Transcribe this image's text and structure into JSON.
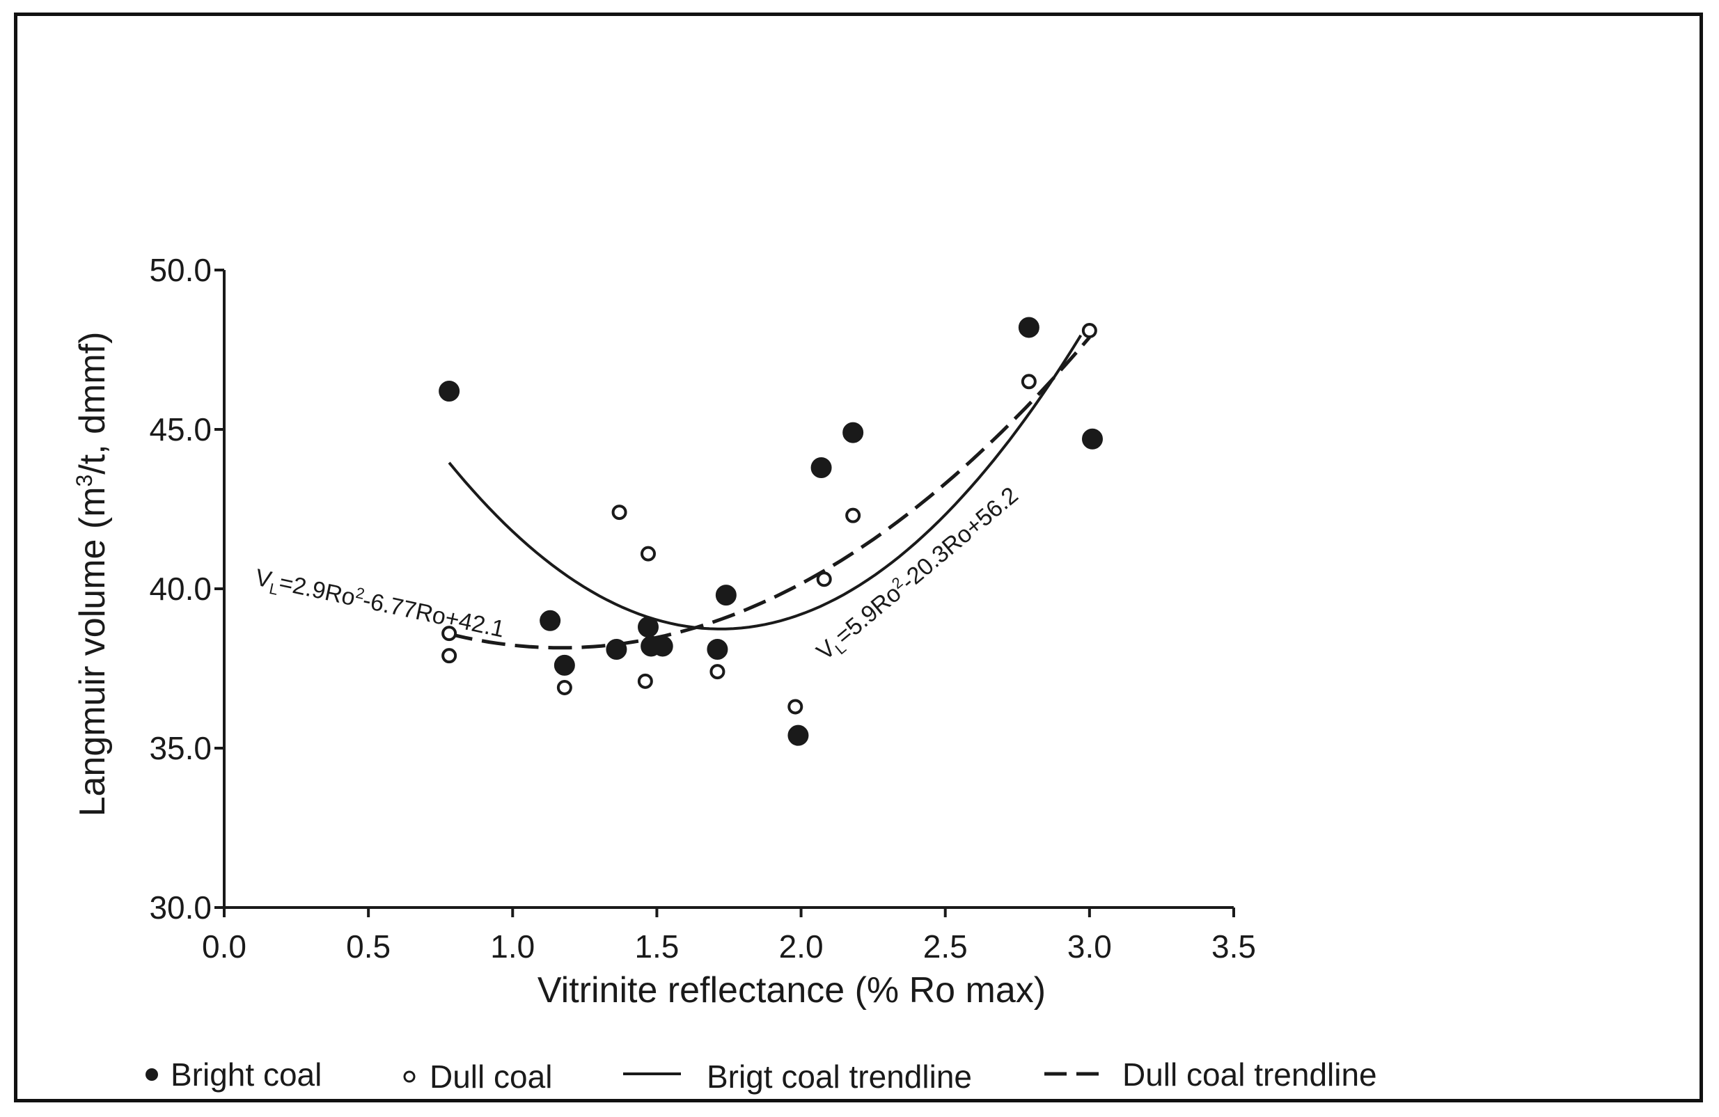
{
  "chart_data": {
    "type": "scatter",
    "xlabel": "Vitrinite reflectance (% Ro max)",
    "ylabel_parts": [
      "Langmuir volume (m",
      "3",
      "/t, dmmf)"
    ],
    "xlim": [
      0.0,
      3.5
    ],
    "ylim": [
      30.0,
      50.0
    ],
    "xticks": [
      0.0,
      0.5,
      1.0,
      1.5,
      2.0,
      2.5,
      3.0,
      3.5
    ],
    "xtick_labels": [
      "0.0",
      "0.5",
      "1.0",
      "1.5",
      "2.0",
      "2.5",
      "3.0",
      "3.5"
    ],
    "yticks": [
      30.0,
      35.0,
      40.0,
      45.0,
      50.0
    ],
    "ytick_labels": [
      "30.0",
      "35.0",
      "40.0",
      "45.0",
      "50.0"
    ],
    "series": [
      {
        "name": "Bright coal",
        "marker": "filled-circle",
        "points": [
          [
            0.78,
            46.2
          ],
          [
            1.13,
            39.0
          ],
          [
            1.18,
            37.6
          ],
          [
            1.36,
            38.1
          ],
          [
            1.47,
            38.8
          ],
          [
            1.48,
            38.2
          ],
          [
            1.52,
            38.2
          ],
          [
            1.71,
            38.1
          ],
          [
            1.74,
            39.8
          ],
          [
            1.99,
            35.4
          ],
          [
            2.07,
            43.8
          ],
          [
            2.18,
            44.9
          ],
          [
            2.79,
            48.2
          ],
          [
            3.01,
            44.7
          ]
        ]
      },
      {
        "name": "Dull coal",
        "marker": "open-circle",
        "points": [
          [
            0.78,
            38.6
          ],
          [
            0.78,
            37.9
          ],
          [
            1.18,
            36.9
          ],
          [
            1.37,
            42.4
          ],
          [
            1.46,
            37.1
          ],
          [
            1.47,
            41.1
          ],
          [
            1.71,
            37.4
          ],
          [
            1.98,
            36.3
          ],
          [
            2.08,
            40.3
          ],
          [
            2.18,
            42.3
          ],
          [
            2.79,
            46.5
          ],
          [
            3.0,
            48.1
          ]
        ]
      }
    ],
    "trendlines": [
      {
        "name": "Brigt coal trendline",
        "style": "solid",
        "coefficients": [
          5.9,
          -20.3,
          56.2
        ],
        "x_range": [
          0.78,
          2.97
        ],
        "equation": {
          "lead": "V",
          "sub": "L",
          "part1": "=5.9Ro",
          "sup": "2",
          "part2": "-20.3Ro+56.2"
        }
      },
      {
        "name": "Dull coal trendline",
        "style": "dashed",
        "coefficients": [
          2.9,
          -6.77,
          42.1
        ],
        "x_range": [
          0.78,
          3.0
        ],
        "equation": {
          "lead": "V",
          "sub": "L",
          "part1": "=2.9Ro",
          "sup": "2",
          "part2": "-6.77Ro+42.1"
        }
      }
    ],
    "legend": {
      "position": "bottom",
      "items": [
        {
          "label": "Bright coal",
          "symbol": "filled-circle"
        },
        {
          "label": "Dull coal",
          "symbol": "open-circle"
        },
        {
          "label": "Brigt coal trendline",
          "symbol": "solid-line"
        },
        {
          "label": "Dull coal trendline",
          "symbol": "dashed-line"
        }
      ]
    },
    "colors": {
      "ink": "#1a1a1a",
      "background": "#ffffff"
    }
  }
}
